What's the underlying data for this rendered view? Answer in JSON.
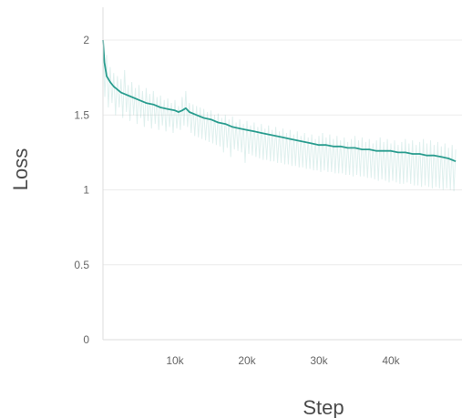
{
  "chart_data": {
    "type": "line",
    "xlabel": "Step",
    "ylabel": "Loss",
    "xlim": [
      0,
      49000
    ],
    "ylim": [
      0,
      2.2
    ],
    "x_ticks": [
      {
        "value": 10000,
        "label": "10k"
      },
      {
        "value": 20000,
        "label": "20k"
      },
      {
        "value": 30000,
        "label": "30k"
      },
      {
        "value": 40000,
        "label": "40k"
      }
    ],
    "y_ticks": [
      {
        "value": 0,
        "label": "0"
      },
      {
        "value": 0.5,
        "label": "0.5"
      },
      {
        "value": 1,
        "label": "1"
      },
      {
        "value": 1.5,
        "label": "1.5"
      },
      {
        "value": 2,
        "label": "2"
      }
    ],
    "grid": "horizontal",
    "legend": "none",
    "series": [
      {
        "role": "smoothed",
        "color": "#2a9d8f",
        "x": [
          0,
          200,
          500,
          1000,
          1500,
          2000,
          2500,
          3000,
          4000,
          5000,
          6000,
          7000,
          8000,
          9000,
          10000,
          10500,
          11000,
          11500,
          12000,
          13000,
          14000,
          15000,
          16000,
          17000,
          18000,
          19000,
          20000,
          21000,
          22000,
          23000,
          24000,
          25000,
          26000,
          27000,
          28000,
          29000,
          30000,
          31000,
          32000,
          33000,
          34000,
          35000,
          36000,
          37000,
          38000,
          39000,
          40000,
          41000,
          42000,
          43000,
          44000,
          45000,
          46000,
          47000,
          48000,
          49000
        ],
        "y": [
          2.0,
          1.85,
          1.76,
          1.72,
          1.69,
          1.67,
          1.65,
          1.64,
          1.62,
          1.6,
          1.58,
          1.57,
          1.55,
          1.54,
          1.53,
          1.52,
          1.53,
          1.545,
          1.52,
          1.5,
          1.48,
          1.47,
          1.45,
          1.44,
          1.42,
          1.41,
          1.4,
          1.39,
          1.38,
          1.37,
          1.36,
          1.35,
          1.34,
          1.33,
          1.32,
          1.31,
          1.3,
          1.3,
          1.29,
          1.29,
          1.28,
          1.28,
          1.27,
          1.27,
          1.26,
          1.26,
          1.26,
          1.25,
          1.25,
          1.24,
          1.24,
          1.23,
          1.23,
          1.22,
          1.21,
          1.19
        ]
      },
      {
        "role": "raw",
        "color": "#2a9d8f",
        "opacity": 0.15,
        "x": [
          0,
          250,
          500,
          750,
          1000,
          1250,
          1500,
          1750,
          2000,
          2250,
          2500,
          2750,
          3000,
          3250,
          3500,
          3750,
          4000,
          4250,
          4500,
          4750,
          5000,
          5250,
          5500,
          5750,
          6000,
          6250,
          6500,
          6750,
          7000,
          7250,
          7500,
          7750,
          8000,
          8250,
          8500,
          8750,
          9000,
          9250,
          9500,
          9750,
          10000,
          10250,
          10500,
          10750,
          11000,
          11250,
          11500,
          11750,
          12000,
          12250,
          12500,
          12750,
          13000,
          13250,
          13500,
          13750,
          14000,
          14250,
          14500,
          14750,
          15000,
          15250,
          15500,
          15750,
          16000,
          16250,
          16500,
          16750,
          17000,
          17250,
          17500,
          17750,
          18000,
          18250,
          18500,
          18750,
          19000,
          19250,
          19500,
          19750,
          20000,
          20250,
          20500,
          20750,
          21000,
          21250,
          21500,
          21750,
          22000,
          22250,
          22500,
          22750,
          23000,
          23250,
          23500,
          23750,
          24000,
          24250,
          24500,
          24750,
          25000,
          25250,
          25500,
          25750,
          26000,
          26250,
          26500,
          26750,
          27000,
          27250,
          27500,
          27750,
          28000,
          28250,
          28500,
          28750,
          29000,
          29250,
          29500,
          29750,
          30000,
          30250,
          30500,
          30750,
          31000,
          31250,
          31500,
          31750,
          32000,
          32250,
          32500,
          32750,
          33000,
          33250,
          33500,
          33750,
          34000,
          34250,
          34500,
          34750,
          35000,
          35250,
          35500,
          35750,
          36000,
          36250,
          36500,
          36750,
          37000,
          37250,
          37500,
          37750,
          38000,
          38250,
          38500,
          38750,
          39000,
          39250,
          39500,
          39750,
          40000,
          40250,
          40500,
          40750,
          41000,
          41250,
          41500,
          41750,
          42000,
          42250,
          42500,
          42750,
          43000,
          43250,
          43500,
          43750,
          44000,
          44250,
          44500,
          44750,
          45000,
          45250,
          45500,
          45750,
          46000,
          46250,
          46500,
          46750,
          47000,
          47250,
          47500,
          47750,
          48000,
          48250,
          48500,
          48750,
          49000
        ],
        "y": [
          2.0,
          1.62,
          1.9,
          1.55,
          1.82,
          1.58,
          1.78,
          1.5,
          1.76,
          1.55,
          1.74,
          1.48,
          1.8,
          1.52,
          1.7,
          1.46,
          1.72,
          1.5,
          1.68,
          1.44,
          1.7,
          1.48,
          1.66,
          1.42,
          1.68,
          1.46,
          1.64,
          1.41,
          1.66,
          1.44,
          1.62,
          1.4,
          1.63,
          1.43,
          1.6,
          1.39,
          1.61,
          1.42,
          1.58,
          1.38,
          1.6,
          1.41,
          1.56,
          1.4,
          1.62,
          1.43,
          1.66,
          1.42,
          1.58,
          1.38,
          1.57,
          1.36,
          1.56,
          1.35,
          1.55,
          1.34,
          1.54,
          1.33,
          1.52,
          1.32,
          1.53,
          1.31,
          1.5,
          1.3,
          1.51,
          1.29,
          1.48,
          1.25,
          1.5,
          1.28,
          1.47,
          1.22,
          1.49,
          1.27,
          1.45,
          1.26,
          1.47,
          1.25,
          1.44,
          1.18,
          1.46,
          1.24,
          1.43,
          1.23,
          1.45,
          1.22,
          1.42,
          1.21,
          1.44,
          1.2,
          1.41,
          1.2,
          1.43,
          1.19,
          1.4,
          1.19,
          1.42,
          1.18,
          1.39,
          1.18,
          1.41,
          1.17,
          1.38,
          1.17,
          1.4,
          1.16,
          1.37,
          1.16,
          1.39,
          1.15,
          1.36,
          1.15,
          1.38,
          1.14,
          1.35,
          1.14,
          1.37,
          1.13,
          1.34,
          1.13,
          1.36,
          1.12,
          1.38,
          1.13,
          1.35,
          1.12,
          1.37,
          1.12,
          1.34,
          1.11,
          1.36,
          1.11,
          1.33,
          1.11,
          1.35,
          1.1,
          1.32,
          1.1,
          1.34,
          1.09,
          1.36,
          1.1,
          1.33,
          1.09,
          1.35,
          1.09,
          1.32,
          1.08,
          1.34,
          1.08,
          1.31,
          1.07,
          1.33,
          1.06,
          1.35,
          1.07,
          1.32,
          1.06,
          1.34,
          1.05,
          1.31,
          1.06,
          1.33,
          1.05,
          1.3,
          1.04,
          1.32,
          1.04,
          1.34,
          1.05,
          1.31,
          1.04,
          1.33,
          1.03,
          1.3,
          1.03,
          1.32,
          1.02,
          1.34,
          1.03,
          1.31,
          1.02,
          1.33,
          1.01,
          1.3,
          1.02,
          1.32,
          1.01,
          1.29,
          1.0,
          1.31,
          1.01,
          1.28,
          1.0,
          1.3,
          0.99,
          1.27
        ]
      }
    ]
  }
}
